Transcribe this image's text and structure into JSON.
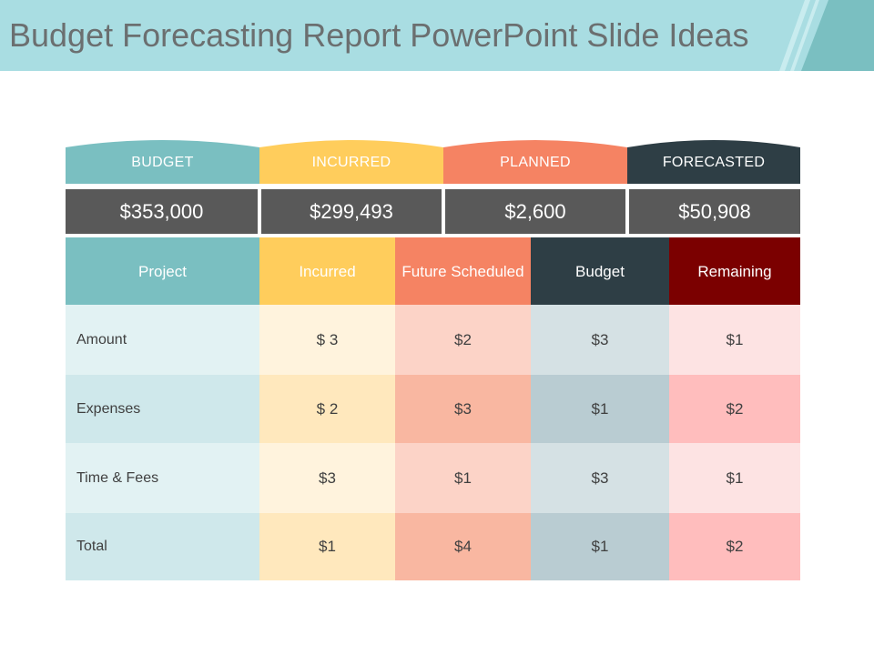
{
  "title": "Budget Forecasting Report PowerPoint Slide Ideas",
  "colors": {
    "teal": "#7abfc1",
    "yellow": "#ffcd5c",
    "orange": "#f58363",
    "dark": "#2e3e45",
    "maroon": "#7b0000",
    "totals_bg": "#595959",
    "title_bar": "#a9dde2"
  },
  "summary": {
    "tabs": [
      "BUDGET",
      "INCURRED",
      "PLANNED",
      "FORECASTED"
    ],
    "values": [
      "$353,000",
      "$299,493",
      "$2,600",
      "$50,908"
    ]
  },
  "table": {
    "headers": [
      "Project",
      "Incurred",
      "Future Scheduled",
      "Budget",
      "Remaining"
    ],
    "rows": [
      {
        "label": "Amount",
        "values": [
          "$ 3",
          "$2",
          "$3",
          "$1"
        ]
      },
      {
        "label": "Expenses",
        "values": [
          "$ 2",
          "$3",
          "$1",
          "$2"
        ]
      },
      {
        "label": "Time & Fees",
        "values": [
          "$3",
          "$1",
          "$3",
          "$1"
        ]
      },
      {
        "label": "Total",
        "values": [
          "$1",
          "$4",
          "$1",
          "$2"
        ]
      }
    ]
  }
}
